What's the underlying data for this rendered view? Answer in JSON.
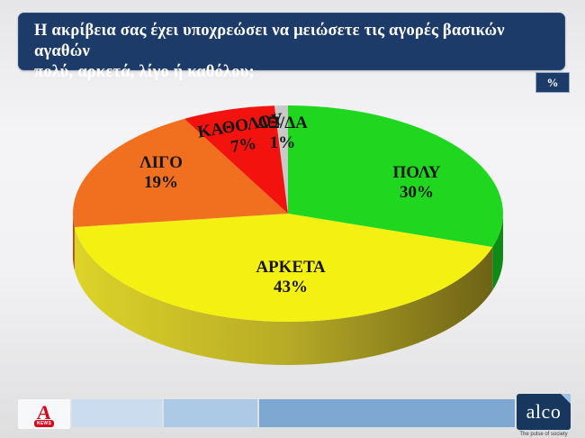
{
  "header": {
    "line1": "Η ακρίβεια σας έχει υποχρεώσει να μειώσετε τις αγορές βασικών αγαθών",
    "line2": "πολύ, αρκετά, λίγο ή καθόλου;",
    "unit_badge": "%"
  },
  "chart_data": {
    "type": "pie",
    "style": "3d",
    "title": "Η ακρίβεια σας έχει υποχρεώσει να μειώσετε τις αγορές βασικών αγαθών πολύ, αρκετά, λίγο ή καθόλου;",
    "unit": "%",
    "direction": "clockwise",
    "start_angle_deg": 0,
    "legend_position": "on-slices",
    "slices": [
      {
        "label": "ΠΟΛΥ",
        "value": 30,
        "pct": "30%",
        "color": "#1fd71f",
        "side": "#0e8a16"
      },
      {
        "label": "ΑΡΚΕΤΑ",
        "value": 43,
        "pct": "43%",
        "color": "#f4f011",
        "side": [
          "#ddd328",
          "#b7ac26",
          "#6e6316"
        ]
      },
      {
        "label": "ΛΙΓΟ",
        "value": 19,
        "pct": "19%",
        "color": "#f0701f",
        "side": "#b44f10"
      },
      {
        "label": "ΚΑΘΟΛΟΥ",
        "value": 7,
        "pct": "7%",
        "color": "#f2130f",
        "side": "#a30c0a"
      },
      {
        "label": "ΔΞ/ΔΑ",
        "value": 1,
        "pct": "1%",
        "color": "#c9c9c9",
        "side": "#8f8f8f"
      }
    ]
  },
  "footer": {
    "alpha_news": {
      "letter": "Α",
      "sub": "NEWS"
    },
    "alco": {
      "name": "alco",
      "tagline": "The pulse of society"
    }
  },
  "colors": {
    "header_bg": "#1d3b69",
    "badge_bg": "#1d3b69",
    "footer_blue_1": "#cadcee",
    "footer_blue_2": "#accae6",
    "footer_blue_3": "#7ea8d2",
    "alco_bg": "#17375e",
    "alpha_red": "#d40920"
  }
}
